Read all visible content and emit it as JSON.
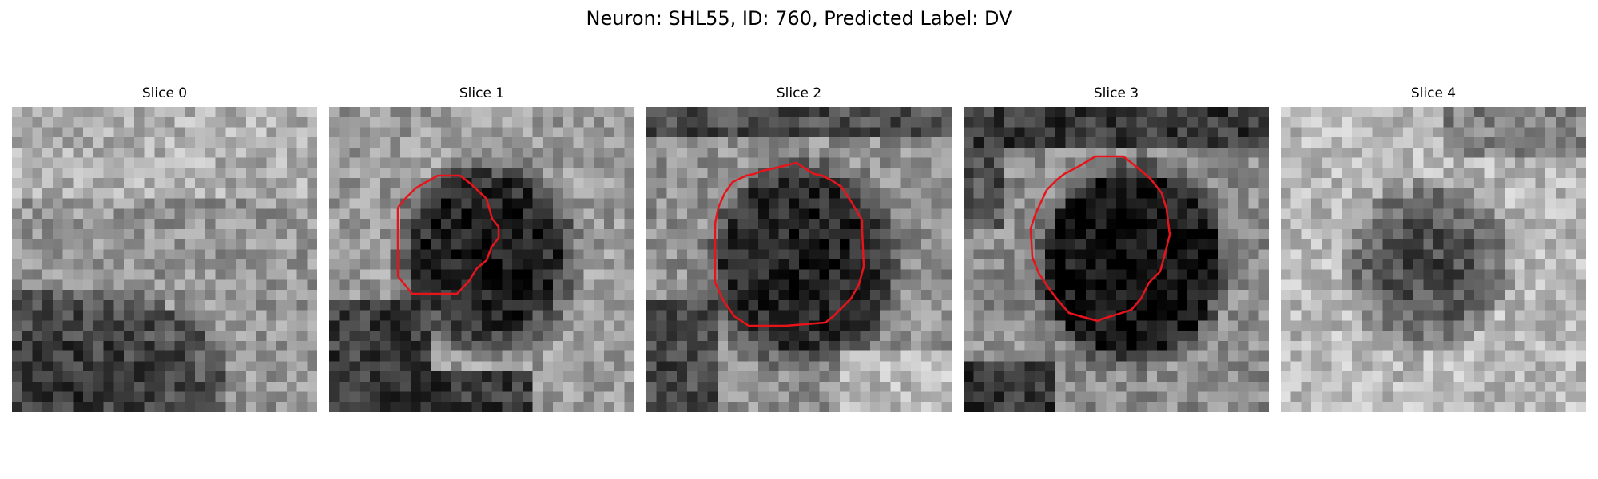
{
  "figure": {
    "title": "Neuron: SHL55, ID: 760, Predicted Label: DV"
  },
  "colors": {
    "contour": "#e8141c",
    "background": "#ffffff",
    "colormap": "gray"
  },
  "slices": [
    {
      "title": "Slice 0",
      "has_contour": false
    },
    {
      "title": "Slice 1",
      "has_contour": true
    },
    {
      "title": "Slice 2",
      "has_contour": true
    },
    {
      "title": "Slice 3",
      "has_contour": true
    },
    {
      "title": "Slice 4",
      "has_contour": false
    }
  ]
}
